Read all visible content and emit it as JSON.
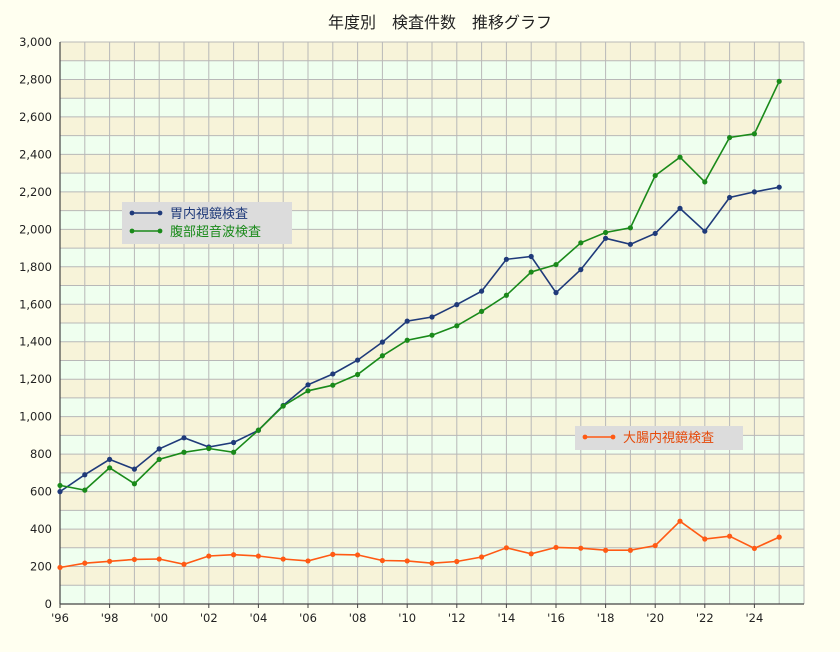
{
  "chart_data": {
    "type": "line",
    "title": "年度別　検査件数　推移グラフ",
    "xlabel": "",
    "ylabel": "",
    "ylim": [
      0,
      3000
    ],
    "y_ticks": [
      "0",
      "200",
      "400",
      "600",
      "800",
      "1,000",
      "1,200",
      "1,400",
      "1,600",
      "1,800",
      "2,000",
      "2,200",
      "2,400",
      "2,600",
      "2,800",
      "3,000"
    ],
    "x_tick_labels": [
      "'96",
      "'98",
      "'00",
      "'02",
      "'04",
      "'06",
      "'08",
      "'10",
      "'12",
      "'14",
      "'16",
      "'18",
      "'20",
      "'22",
      "'24"
    ],
    "x": [
      1996,
      1997,
      1998,
      1999,
      2000,
      2001,
      2002,
      2003,
      2004,
      2005,
      2006,
      2007,
      2008,
      2009,
      2010,
      2011,
      2012,
      2013,
      2014,
      2015,
      2016,
      2017,
      2018,
      2019,
      2020,
      2021,
      2022,
      2023,
      2024,
      2025
    ],
    "xlim": [
      1996,
      2026
    ],
    "grid": true,
    "series": [
      {
        "name": "胃内視鏡検査",
        "color": "#1f3a7a",
        "values": [
          600,
          690,
          772,
          720,
          828,
          887,
          838,
          862,
          927,
          1060,
          1170,
          1228,
          1302,
          1398,
          1510,
          1532,
          1598,
          1670,
          1840,
          1855,
          1662,
          1785,
          1952,
          1920,
          1978,
          2112,
          1990,
          2170,
          2200,
          2225
        ]
      },
      {
        "name": "腹部超音波検査",
        "color": "#1a8a1a",
        "values": [
          633,
          608,
          727,
          642,
          772,
          810,
          830,
          810,
          928,
          1057,
          1138,
          1168,
          1225,
          1325,
          1408,
          1435,
          1485,
          1562,
          1648,
          1772,
          1812,
          1928,
          1983,
          2008,
          2287,
          2385,
          2253,
          2490,
          2510,
          2790
        ]
      },
      {
        "name": "大腸内視鏡検査",
        "color": "#ff5a14",
        "values": [
          195,
          218,
          228,
          238,
          240,
          212,
          256,
          263,
          256,
          240,
          230,
          265,
          262,
          232,
          230,
          218,
          227,
          251,
          300,
          268,
          302,
          298,
          287,
          287,
          312,
          442,
          347,
          362,
          297,
          357
        ]
      }
    ],
    "legends": [
      {
        "series": [
          0,
          1
        ],
        "placement": "left-middle"
      },
      {
        "series": [
          2
        ],
        "placement": "right-lower"
      }
    ],
    "colors": {
      "background": "#fffff0",
      "band_light": "#efffef",
      "band_dark": "#f7f3d9",
      "grid": "#b8b8b8",
      "legend_box": "#dcdcdc"
    }
  }
}
